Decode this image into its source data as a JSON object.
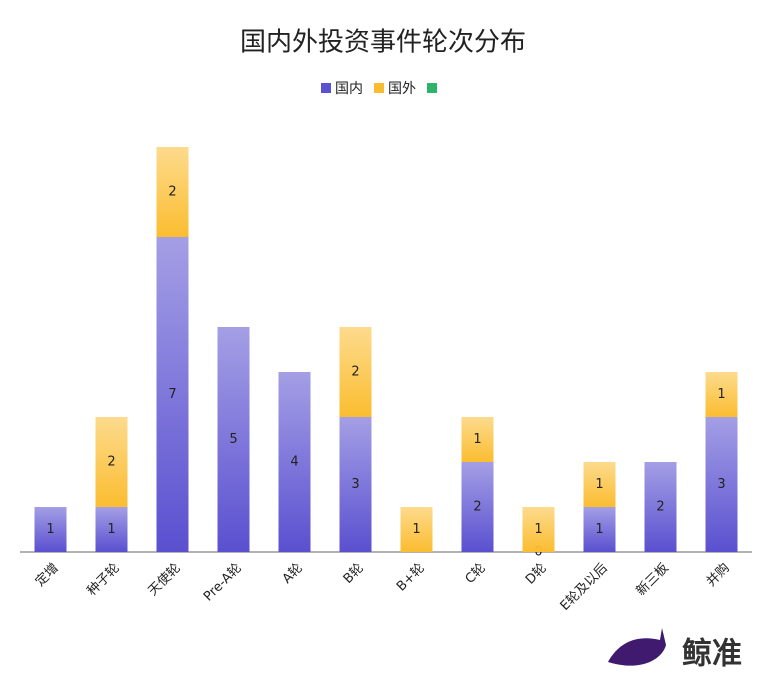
{
  "chart_data": {
    "type": "stacked_bar",
    "title": "国内外投资事件轮次分布",
    "categories": [
      "定增",
      "种子轮",
      "天使轮",
      "Pre-A轮",
      "A轮",
      "B轮",
      "B+轮",
      "C轮",
      "D轮",
      "E轮及以后",
      "新三板",
      "并购"
    ],
    "series": [
      {
        "name": "国内",
        "color": "#5a50d0",
        "values": [
          1,
          1,
          7,
          5,
          4,
          3,
          null,
          2,
          0,
          1,
          2,
          3
        ]
      },
      {
        "name": "国外",
        "color": "#fbbd30",
        "values": [
          null,
          2,
          2,
          null,
          null,
          2,
          1,
          1,
          1,
          1,
          null,
          1
        ]
      }
    ],
    "ylim": [
      0,
      9
    ],
    "legend": "top"
  },
  "watermark": "鲸准"
}
